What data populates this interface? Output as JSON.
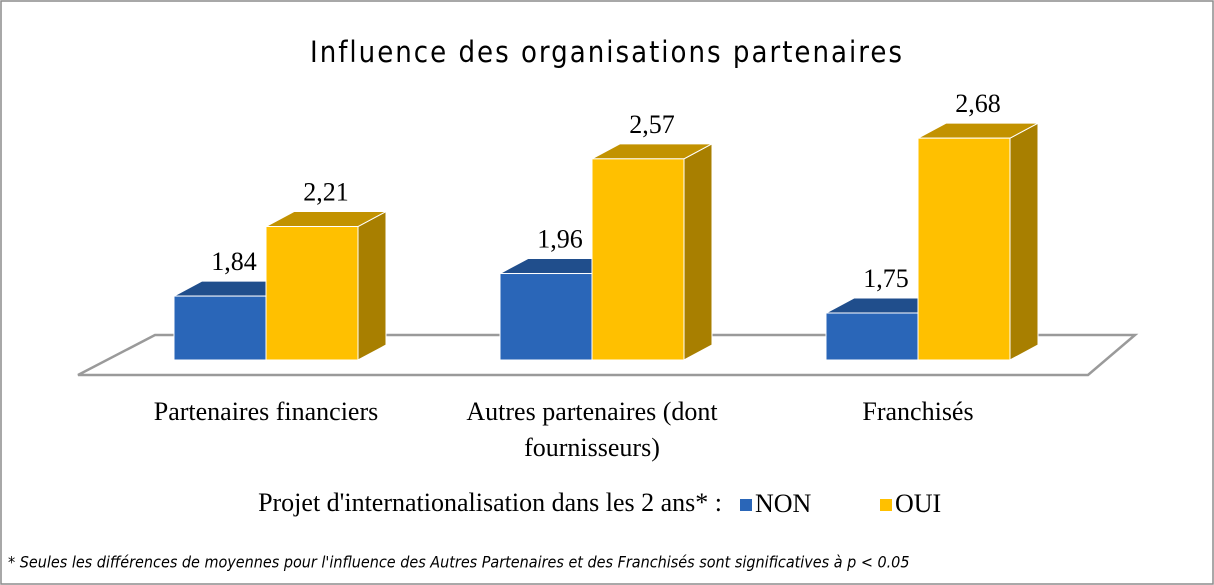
{
  "chart_data": {
    "type": "bar",
    "title": "Influence des organisations partenaires",
    "categories": [
      "Partenaires financiers",
      "Autres partenaires (dont fournisseurs)",
      "Franchisés"
    ],
    "series": [
      {
        "name": "NON",
        "color": "#2a66b8",
        "values": [
          1.84,
          1.96,
          1.75
        ],
        "value_labels": [
          "1,84",
          "1,96",
          "1,75"
        ]
      },
      {
        "name": "OUI",
        "color": "#ffc000",
        "values": [
          2.21,
          2.57,
          2.68
        ],
        "value_labels": [
          "2,21",
          "2,57",
          "2,68"
        ]
      }
    ],
    "ylim": [
      1.5,
      3
    ],
    "legend_title": "Projet d'internationalisation dans les 2 ans* :",
    "footnote": "* Seules les différences de moyennes pour l'influence des Autres Partenaires et des Franchisés sont significatives à p < 0.05"
  }
}
